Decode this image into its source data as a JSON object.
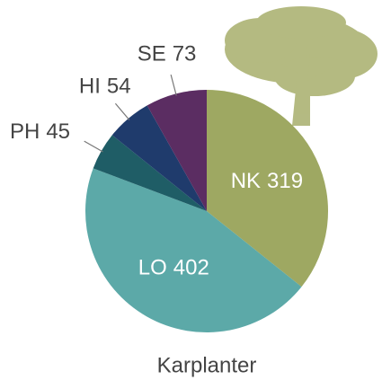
{
  "chart_data": {
    "type": "pie",
    "title": "Karplanter",
    "categories": [
      "NK",
      "LO",
      "PH",
      "HI",
      "SE"
    ],
    "values": [
      319,
      402,
      45,
      54,
      73
    ],
    "colors": [
      "#9ea862",
      "#5ca9a8",
      "#1f5d66",
      "#1f3b6c",
      "#5b2d62"
    ]
  }
}
